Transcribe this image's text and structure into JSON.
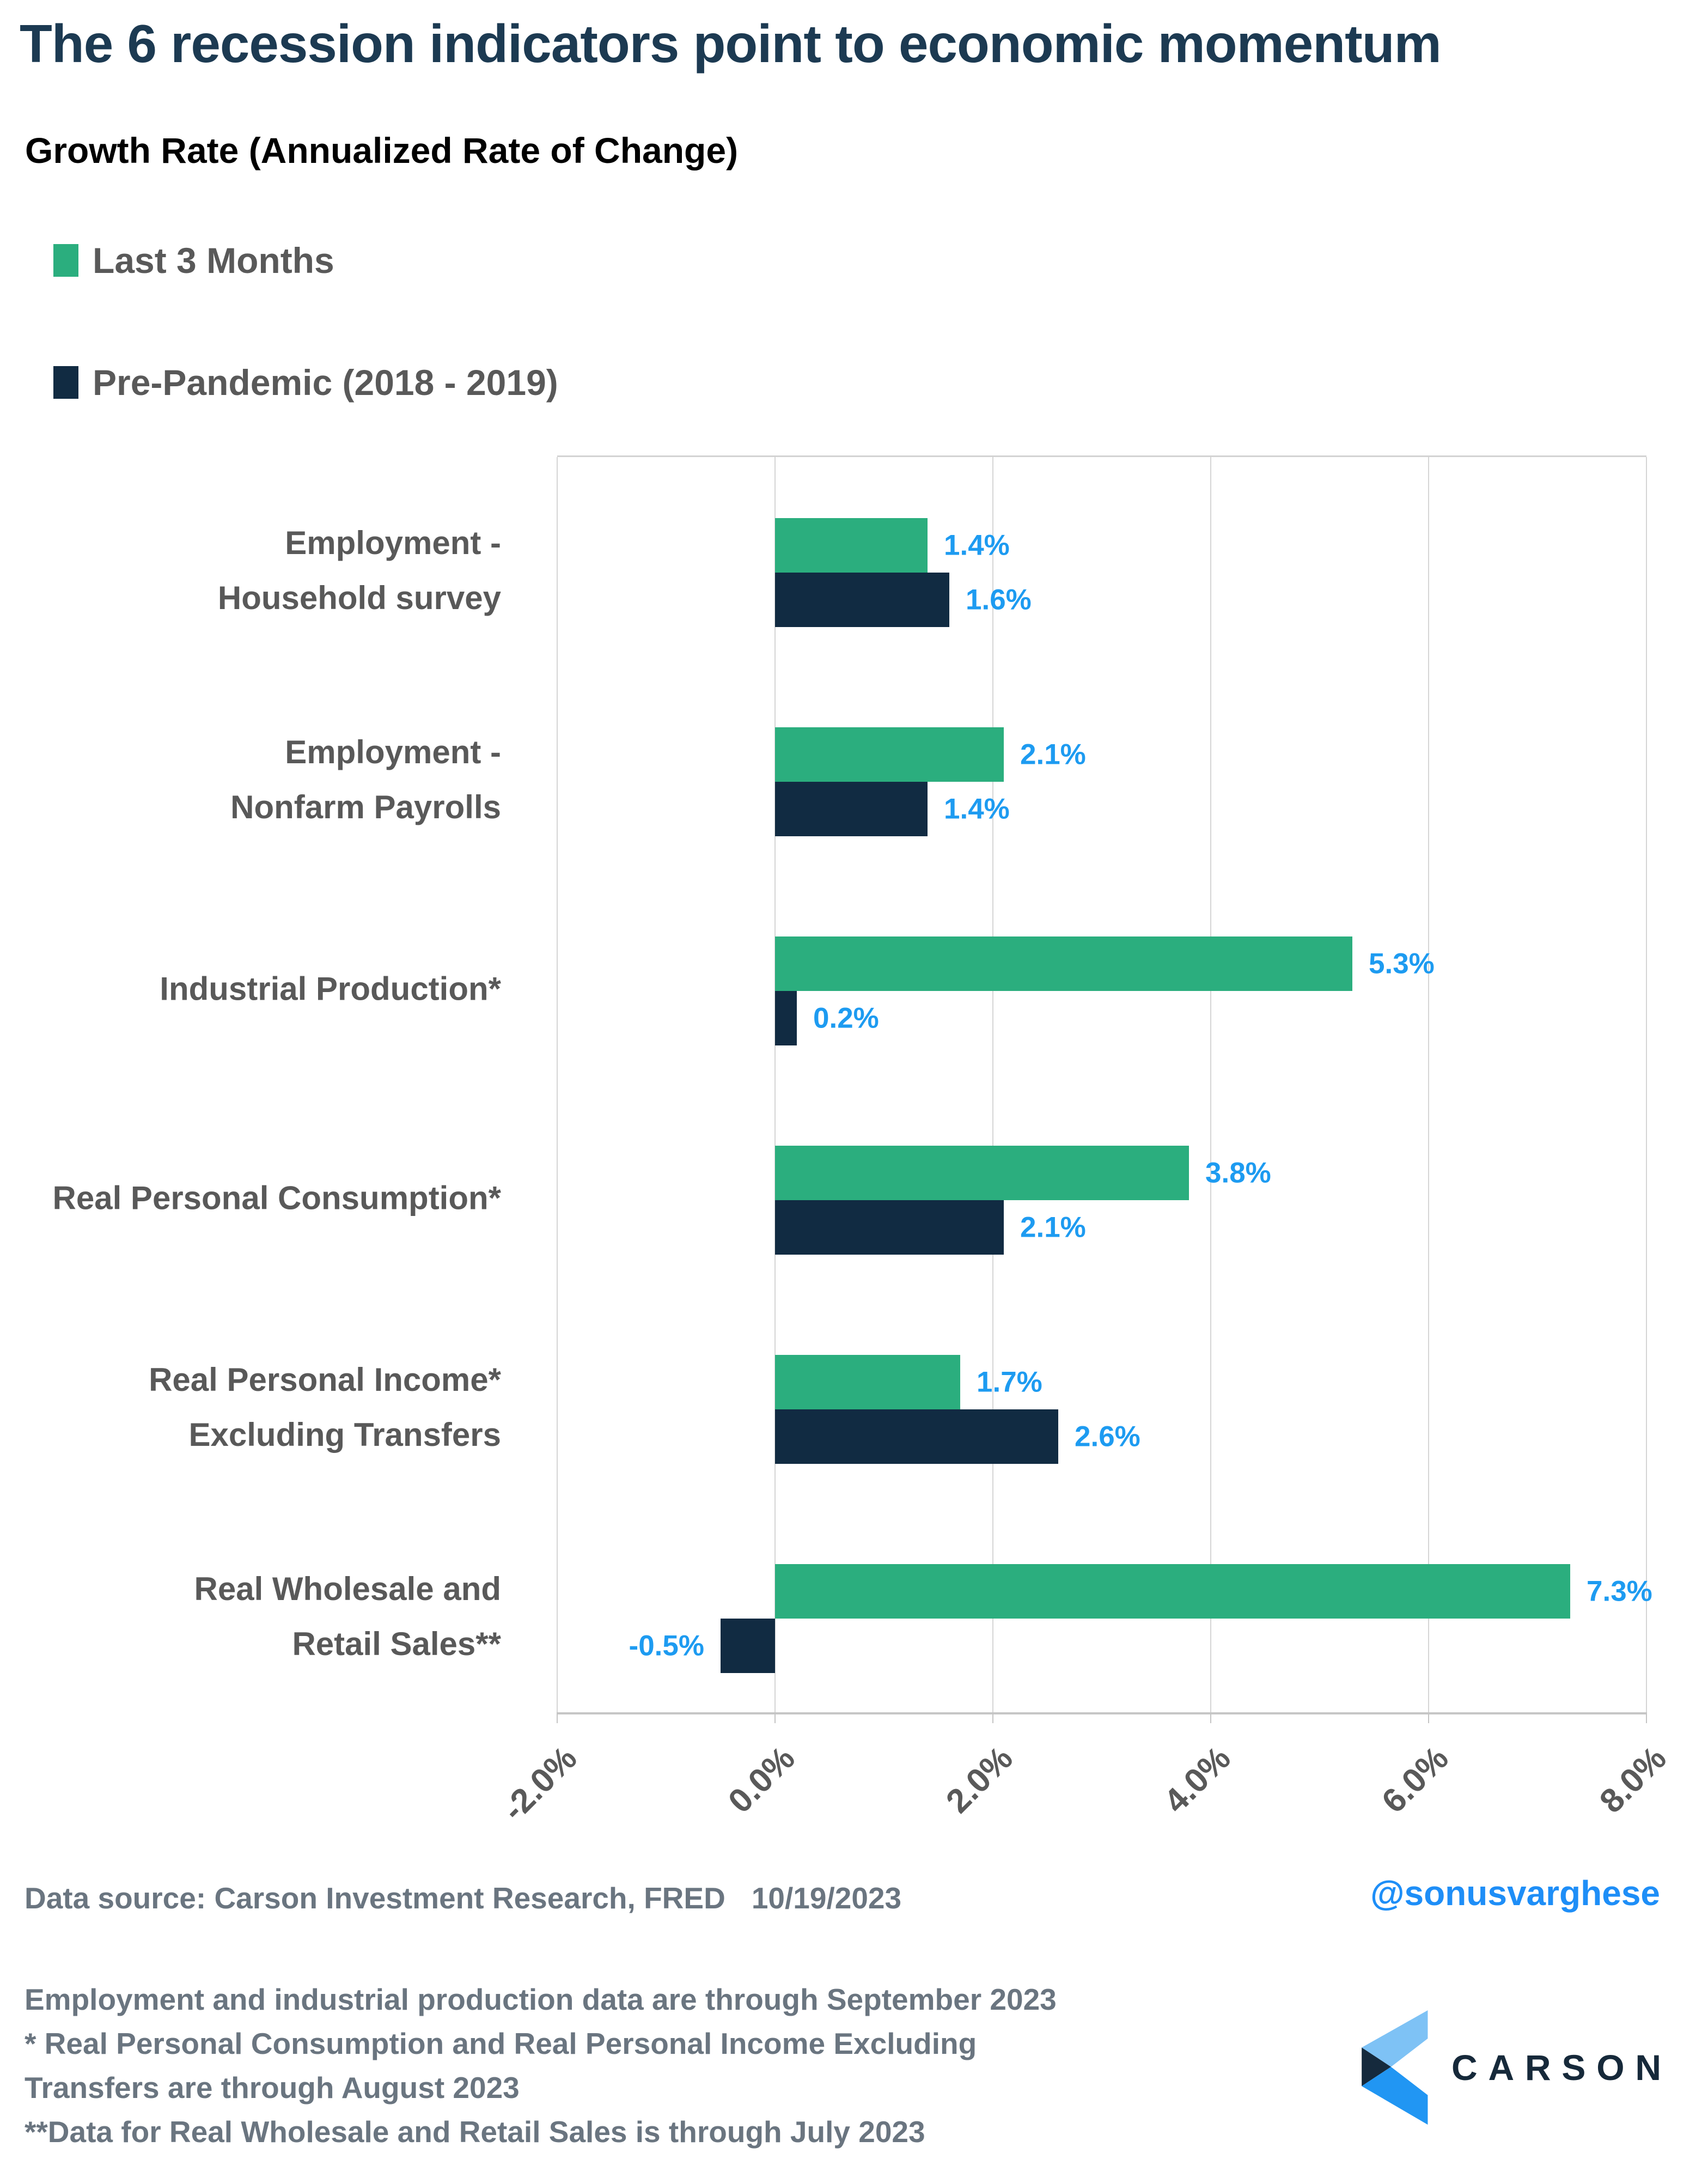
{
  "title": "The 6 recession indicators point to economic momentum",
  "subtitle": "Growth Rate (Annualized Rate of Change)",
  "legend": [
    {
      "label": "Last 3 Months",
      "color": "#2BAE7E"
    },
    {
      "label": "Pre-Pandemic (2018 - 2019)",
      "color": "#112B42"
    }
  ],
  "chart_data": {
    "type": "bar",
    "orientation": "horizontal",
    "title": "Growth Rate (Annualized Rate of Change)",
    "xlim": [
      -2,
      8
    ],
    "x_tick_values": [
      -2,
      0,
      2,
      4,
      6,
      8
    ],
    "x_tick_labels": [
      "-2.0%",
      "0.0%",
      "2.0%",
      "4.0%",
      "6.0%",
      "8.0%"
    ],
    "grid": true,
    "legend_position": "top-left",
    "categories": [
      [
        "Employment -",
        "Household survey"
      ],
      [
        "Employment -",
        "Nonfarm Payrolls"
      ],
      [
        "Industrial Production*"
      ],
      [
        "Real Personal Consumption*"
      ],
      [
        "Real Personal Income*",
        "Excluding Transfers"
      ],
      [
        "Real Wholesale and",
        "Retail Sales**"
      ]
    ],
    "series": [
      {
        "name": "Last 3 Months",
        "color": "#2BAE7E",
        "values": [
          1.4,
          2.1,
          5.3,
          3.8,
          1.7,
          7.3
        ],
        "labels": [
          "1.4%",
          "2.1%",
          "5.3%",
          "3.8%",
          "1.7%",
          "7.3%"
        ]
      },
      {
        "name": "Pre-Pandemic (2018 - 2019)",
        "color": "#112B42",
        "values": [
          1.6,
          1.4,
          0.2,
          2.1,
          2.6,
          -0.5
        ],
        "labels": [
          "1.6%",
          "1.4%",
          "0.2%",
          "2.1%",
          "2.6%",
          "-0.5%"
        ]
      }
    ],
    "data_label_color": "#1D9BF1"
  },
  "footer": {
    "source": "Data source: Carson Investment Research, FRED",
    "date": "10/19/2023",
    "handle": "@sonusvarghese",
    "notes": [
      "Employment and industrial production data are through September 2023",
      "* Real Personal Consumption and Real Personal Income Excluding",
      "Transfers are through August 2023",
      "**Data for Real Wholesale and Retail Sales is through July 2023"
    ],
    "logo_text": "CARSON",
    "logo_colors": {
      "light": "#7EC2F5",
      "dark": "#152A3D",
      "blue": "#2196F3"
    }
  }
}
